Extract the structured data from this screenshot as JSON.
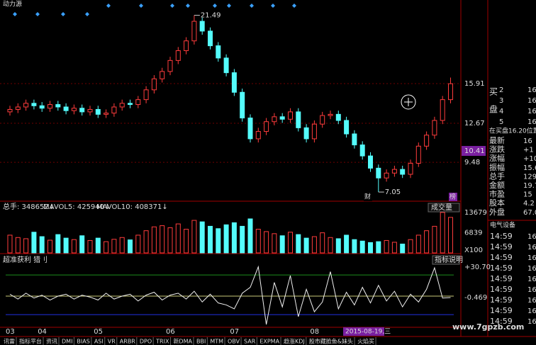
{
  "header": {
    "stock": "动力源"
  },
  "chart_data": [
    {
      "type": "candlestick",
      "open": [
        13.6,
        13.8,
        14.0,
        14.3,
        14.1,
        13.9,
        14.2,
        14.0,
        13.7,
        13.9,
        13.6,
        13.8,
        13.4,
        13.5,
        14.0,
        14.3,
        14.2,
        14.6,
        15.4,
        16.3,
        16.9,
        17.8,
        18.6,
        19.4,
        21.0,
        20.2,
        19.0,
        18.0,
        16.8,
        15.2,
        13.1,
        11.4,
        12.0,
        12.8,
        13.2,
        13.0,
        13.6,
        12.3,
        11.4,
        12.6,
        13.3,
        13.4,
        12.9,
        11.8,
        10.9,
        10.0,
        9.0,
        8.2,
        8.6,
        8.9,
        8.5,
        9.4,
        10.8,
        11.7,
        12.9,
        14.6
      ],
      "high": [
        14.1,
        14.3,
        14.6,
        14.6,
        14.4,
        14.5,
        14.5,
        14.3,
        14.2,
        14.2,
        14.1,
        14.1,
        13.8,
        14.3,
        14.6,
        14.6,
        14.9,
        15.7,
        16.6,
        17.2,
        18.1,
        18.9,
        19.7,
        21.49,
        21.3,
        20.5,
        19.3,
        18.3,
        17.1,
        15.5,
        13.4,
        12.3,
        13.1,
        13.5,
        13.5,
        13.9,
        13.9,
        12.6,
        12.9,
        13.6,
        13.7,
        13.7,
        13.2,
        12.1,
        11.2,
        10.3,
        9.3,
        8.9,
        9.2,
        9.2,
        9.7,
        11.1,
        12.0,
        13.2,
        14.9,
        16.4
      ],
      "low": [
        13.3,
        13.5,
        13.7,
        13.8,
        13.6,
        13.6,
        13.7,
        13.4,
        13.4,
        13.3,
        13.3,
        13.1,
        13.1,
        13.2,
        13.7,
        13.9,
        13.9,
        14.3,
        15.1,
        16.0,
        16.6,
        17.5,
        18.3,
        19.1,
        19.9,
        18.7,
        17.7,
        16.5,
        14.9,
        12.8,
        11.1,
        11.1,
        11.7,
        12.5,
        12.7,
        12.7,
        12.0,
        11.1,
        11.1,
        12.3,
        13.0,
        12.6,
        11.5,
        10.6,
        9.7,
        8.7,
        7.05,
        7.9,
        8.3,
        8.2,
        8.2,
        9.1,
        10.5,
        11.4,
        12.6,
        14.3
      ],
      "close": [
        13.8,
        14.0,
        14.3,
        14.1,
        13.9,
        14.2,
        14.0,
        13.7,
        13.9,
        13.6,
        13.8,
        13.4,
        13.5,
        14.0,
        14.3,
        14.2,
        14.6,
        15.4,
        16.3,
        16.9,
        17.8,
        18.6,
        19.4,
        21.0,
        20.2,
        19.0,
        18.0,
        16.8,
        15.2,
        13.1,
        11.4,
        12.0,
        12.8,
        13.2,
        13.0,
        13.6,
        12.3,
        11.4,
        12.6,
        13.3,
        13.4,
        12.9,
        11.8,
        10.9,
        10.0,
        9.0,
        8.2,
        8.6,
        8.9,
        8.5,
        9.4,
        10.8,
        11.7,
        12.9,
        14.6,
        15.9
      ],
      "up_color": "#ff3c3c",
      "down_color": "#54fcfc",
      "ylim": [
        6.36,
        22.74
      ],
      "yticks": [
        15.91,
        12.67,
        9.48
      ],
      "current": 10.41,
      "markers": [
        "财",
        "榜"
      ]
    },
    {
      "type": "bar",
      "legend": [
        "总手: 348652↓",
        "MAVOL5: 425940↓",
        "MAVOL10: 408371↓"
      ],
      "button": "成交量",
      "unit": "X100",
      "values": [
        6000,
        5200,
        4800,
        7000,
        5500,
        4300,
        6200,
        5000,
        4500,
        5800,
        4200,
        5000,
        3800,
        4600,
        5200,
        4400,
        6000,
        7500,
        8800,
        9200,
        8500,
        9800,
        8000,
        11000,
        10500,
        9000,
        8200,
        9500,
        10200,
        9000,
        11500,
        8000,
        7200,
        6500,
        5800,
        7000,
        6200,
        5000,
        5500,
        6800,
        5200,
        4800,
        6000,
        4500,
        4000,
        3500,
        3800,
        4200,
        3600,
        3000,
        4500,
        6000,
        7500,
        9000,
        13679,
        12000
      ],
      "ylim": [
        0,
        17000
      ],
      "yticks": [
        13679,
        6839
      ]
    },
    {
      "type": "line",
      "title": "超准获利 猎刂",
      "button": "指标说明",
      "values": [
        3,
        -2,
        4,
        -1,
        2,
        -3,
        1,
        3,
        -2,
        2,
        0,
        -3,
        4,
        -2,
        1,
        3,
        -4,
        2,
        5,
        -3,
        2,
        4,
        -2,
        6,
        -5,
        3,
        -6,
        -8,
        -12,
        4,
        10,
        31,
        -28,
        15,
        -10,
        22,
        -20,
        8,
        -15,
        -5,
        26,
        -12,
        5,
        -8,
        10,
        -6,
        12,
        -4,
        6,
        -10,
        3,
        -5,
        8,
        30,
        -1,
        -0.469
      ],
      "color": "#f0f0f0",
      "levels": [
        {
          "value": 22.7,
          "color": "#1c8c1c"
        },
        {
          "value": 1,
          "color": "#c8c878"
        },
        {
          "value": -17.9,
          "color": "#2030e0"
        }
      ],
      "ylim": [
        -30.9,
        41.6
      ],
      "yticks": [
        {
          "value": 30.7,
          "label": "+30.70"
        },
        -0.469
      ]
    }
  ],
  "x_axis": {
    "ticks": [
      {
        "value": 0,
        "label": "03"
      },
      {
        "value": 4,
        "label": "04"
      },
      {
        "value": 11,
        "label": "05"
      },
      {
        "value": 20,
        "label": "06"
      },
      {
        "value": 28,
        "label": "07"
      },
      {
        "value": 38,
        "label": "08"
      }
    ],
    "cursor_date": "2015-08-19,三"
  },
  "watermark": "www.7gpzb.com",
  "tabs": [
    "讯雷",
    "指标平台",
    "资讯",
    "DMI",
    "BIAS",
    "ASI",
    "VR",
    "ARBR",
    "DPO",
    "TRIX",
    "新DMA",
    "BBI",
    "MTM",
    "OBV",
    "SAR",
    "EXPMA",
    "趋涨KDJ",
    "股市藏脸鱼&妹头",
    "火焰买"
  ],
  "quote": {
    "side": [
      "买",
      "盘"
    ],
    "levels": [
      [
        "2",
        "16"
      ],
      [
        "3",
        "16"
      ],
      [
        "4",
        "16"
      ],
      [
        "5",
        "16"
      ]
    ],
    "prompt": "在买盘16.20位置省",
    "stats": [
      [
        "最新",
        "16"
      ],
      [
        "涨跌",
        "+1"
      ],
      [
        "涨幅",
        "+10.0"
      ],
      [
        "振幅",
        "15.6"
      ],
      [
        "总手",
        "129."
      ],
      [
        "金额",
        "19.7"
      ],
      [
        "市盈",
        "15"
      ],
      [
        "股本",
        "4.2"
      ],
      [
        "外盘",
        "67.0"
      ]
    ],
    "sector": "电气设备",
    "trades": [
      [
        "14:59",
        "16"
      ],
      [
        "14:59",
        "16"
      ],
      [
        "14:59",
        "16"
      ],
      [
        "14:59",
        "16"
      ],
      [
        "14:59",
        "16"
      ],
      [
        "14:59",
        "16"
      ],
      [
        "14:59",
        "16"
      ],
      [
        "14:59",
        "16"
      ],
      [
        "14:59",
        "16"
      ]
    ]
  }
}
